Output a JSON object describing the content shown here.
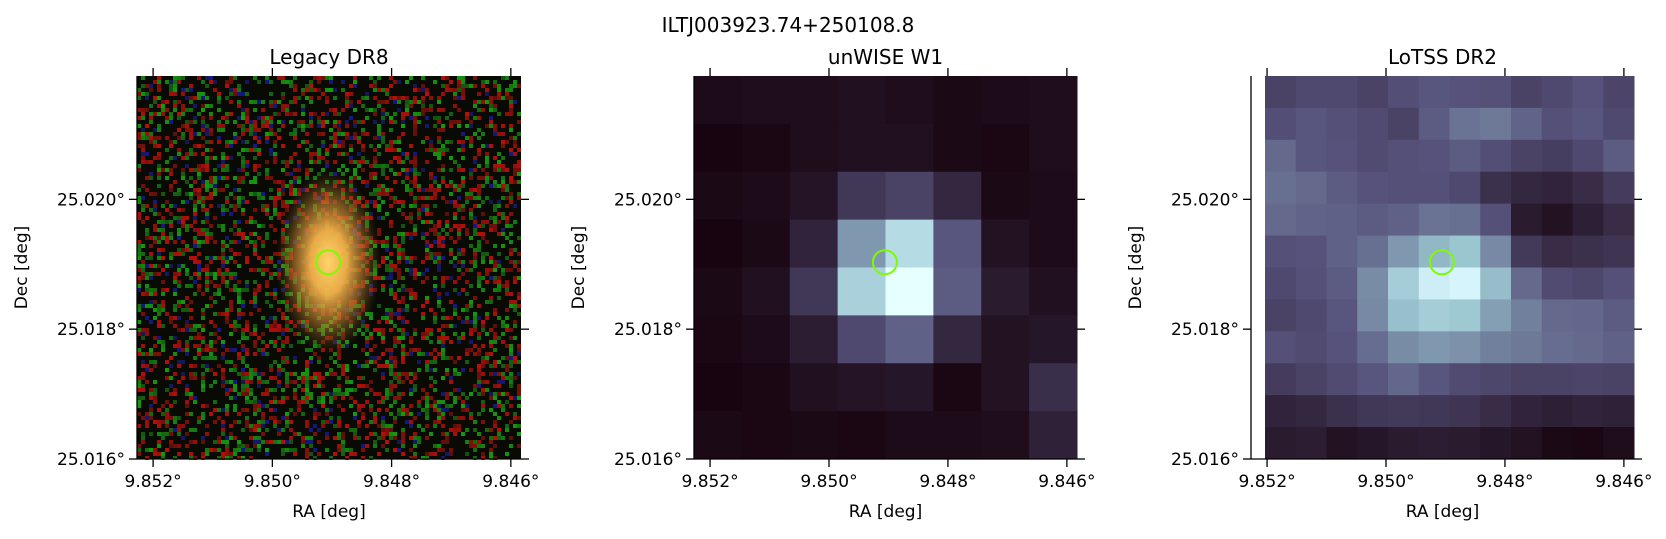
{
  "figure": {
    "suptitle": "ILTJ003923.74+250108.8"
  },
  "chart_data": [
    {
      "type": "heatmap",
      "title": "Legacy DR8",
      "xlabel": "RA [deg]",
      "ylabel": "Dec [deg]",
      "xticks": [
        9.852,
        9.85,
        9.848,
        9.846
      ],
      "xtick_labels": [
        "9.852°",
        "9.850°",
        "9.848°",
        "9.846°"
      ],
      "yticks": [
        25.016,
        25.018,
        25.02
      ],
      "ytick_labels": [
        "25.016°",
        "25.018°",
        "25.020°"
      ],
      "xlim": [
        9.85227,
        9.84583
      ],
      "ylim": [
        25.016,
        25.0219
      ],
      "image": "rgb optical cutout: noisy red/green/black background with an elongated orange-yellow galaxy at the center",
      "marker": {
        "shape": "circle",
        "ra": 9.84906,
        "dec": 25.01903,
        "color": "#7cfc00"
      }
    },
    {
      "type": "heatmap",
      "title": "unWISE W1",
      "xlabel": "RA [deg]",
      "ylabel": "Dec [deg]",
      "xticks": [
        9.852,
        9.85,
        9.848,
        9.846
      ],
      "xtick_labels": [
        "9.852°",
        "9.850°",
        "9.848°",
        "9.846°"
      ],
      "yticks": [
        25.016,
        25.018,
        25.02
      ],
      "ytick_labels": [
        "25.016°",
        "25.018°",
        "25.020°"
      ],
      "xlim": [
        9.85227,
        9.84583
      ],
      "ylim": [
        25.016,
        25.0219
      ],
      "image": "coarse grayscale (bone colormap) pixel cutout with bright source at center",
      "pixels": [
        [
          0.05,
          0.06,
          0.06,
          0.07,
          0.06,
          0.04,
          0.05,
          0.06
        ],
        [
          0.02,
          0.03,
          0.06,
          0.07,
          0.07,
          0.04,
          0.03,
          0.06
        ],
        [
          0.04,
          0.05,
          0.09,
          0.25,
          0.3,
          0.18,
          0.04,
          0.05
        ],
        [
          0.02,
          0.04,
          0.16,
          0.6,
          0.84,
          0.38,
          0.08,
          0.05
        ],
        [
          0.04,
          0.07,
          0.25,
          0.8,
          1.0,
          0.4,
          0.12,
          0.07
        ],
        [
          0.03,
          0.05,
          0.13,
          0.33,
          0.42,
          0.18,
          0.08,
          0.1
        ],
        [
          0.02,
          0.03,
          0.07,
          0.09,
          0.1,
          0.03,
          0.08,
          0.21
        ],
        [
          0.04,
          0.03,
          0.04,
          0.03,
          0.05,
          0.05,
          0.06,
          0.15
        ]
      ],
      "marker": {
        "shape": "circle",
        "ra": 9.84906,
        "dec": 25.01903,
        "color": "#7cfc00"
      }
    },
    {
      "type": "heatmap",
      "title": "LoTSS DR2",
      "xlabel": "RA [deg]",
      "ylabel": "Dec [deg]",
      "xticks": [
        9.852,
        9.85,
        9.848,
        9.846
      ],
      "xtick_labels": [
        "9.852°",
        "9.850°",
        "9.848°",
        "9.846°"
      ],
      "yticks": [
        25.016,
        25.018,
        25.02
      ],
      "ytick_labels": [
        "25.016°",
        "25.018°",
        "25.020°"
      ],
      "xlim": [
        9.85227,
        9.84583
      ],
      "ylim": [
        25.016,
        25.0219
      ],
      "image": "grayscale (bone colormap) radio cutout, slightly rotated, white blank border at left, bright source at center",
      "pixels": [
        [
          0.3,
          0.33,
          0.33,
          0.3,
          0.35,
          0.38,
          0.37,
          0.36,
          0.3,
          0.33,
          0.37,
          0.31
        ],
        [
          0.35,
          0.38,
          0.36,
          0.34,
          0.3,
          0.4,
          0.48,
          0.5,
          0.43,
          0.36,
          0.38,
          0.33
        ],
        [
          0.45,
          0.38,
          0.37,
          0.34,
          0.36,
          0.37,
          0.4,
          0.35,
          0.3,
          0.28,
          0.33,
          0.4
        ],
        [
          0.47,
          0.45,
          0.4,
          0.37,
          0.36,
          0.36,
          0.33,
          0.22,
          0.18,
          0.16,
          0.2,
          0.27
        ],
        [
          0.45,
          0.43,
          0.42,
          0.4,
          0.42,
          0.48,
          0.47,
          0.36,
          0.12,
          0.08,
          0.14,
          0.2
        ],
        [
          0.36,
          0.37,
          0.42,
          0.47,
          0.6,
          0.7,
          0.75,
          0.55,
          0.26,
          0.2,
          0.22,
          0.24
        ],
        [
          0.33,
          0.36,
          0.4,
          0.56,
          0.78,
          0.92,
          0.95,
          0.72,
          0.45,
          0.34,
          0.32,
          0.36
        ],
        [
          0.3,
          0.33,
          0.38,
          0.55,
          0.73,
          0.78,
          0.76,
          0.62,
          0.52,
          0.45,
          0.44,
          0.4
        ],
        [
          0.36,
          0.34,
          0.37,
          0.46,
          0.56,
          0.6,
          0.58,
          0.52,
          0.5,
          0.46,
          0.45,
          0.42
        ],
        [
          0.27,
          0.3,
          0.34,
          0.38,
          0.44,
          0.38,
          0.34,
          0.32,
          0.3,
          0.3,
          0.31,
          0.3
        ],
        [
          0.16,
          0.18,
          0.22,
          0.25,
          0.26,
          0.25,
          0.24,
          0.2,
          0.16,
          0.14,
          0.16,
          0.15
        ],
        [
          0.12,
          0.13,
          0.08,
          0.1,
          0.12,
          0.13,
          0.12,
          0.1,
          0.08,
          0.04,
          0.03,
          0.06
        ]
      ],
      "marker": {
        "shape": "circle",
        "ra": 9.84906,
        "dec": 25.01903,
        "color": "#7cfc00"
      }
    }
  ]
}
